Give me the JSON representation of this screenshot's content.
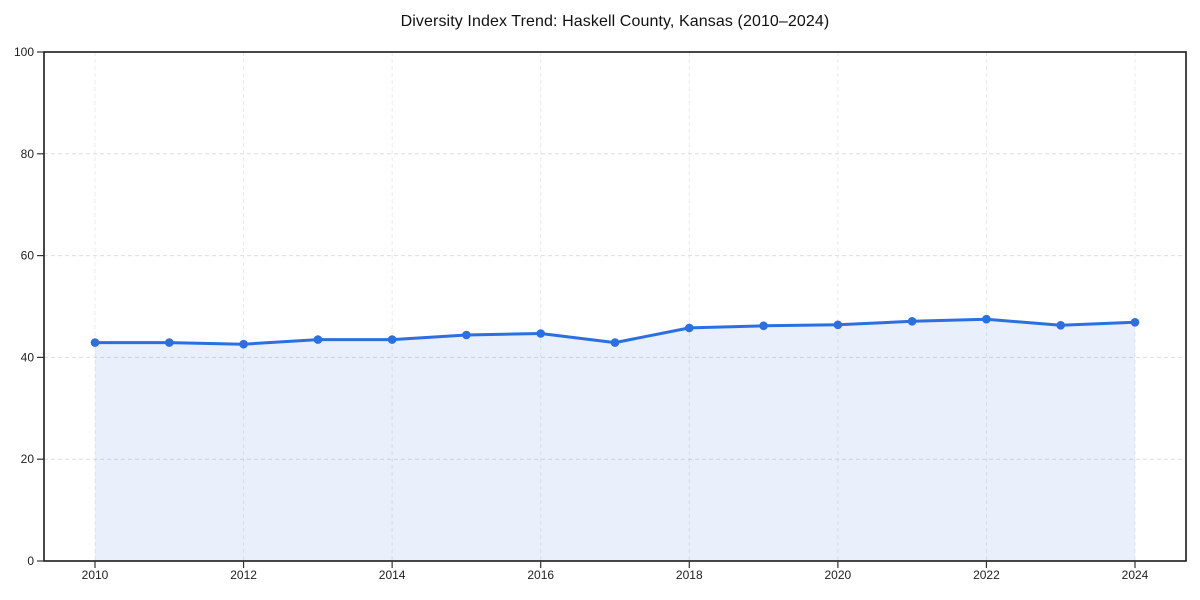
{
  "chart_data": {
    "type": "line",
    "title": "Diversity Index Trend: Haskell County, Kansas (2010–2024)",
    "xlabel": "",
    "ylabel": "",
    "x": [
      2010,
      2011,
      2012,
      2013,
      2014,
      2015,
      2016,
      2017,
      2018,
      2019,
      2020,
      2021,
      2022,
      2023,
      2024
    ],
    "series": [
      {
        "name": "Diversity Index",
        "values": [
          42.9,
          42.9,
          42.6,
          43.5,
          43.5,
          44.4,
          44.7,
          42.9,
          45.8,
          46.2,
          46.4,
          47.1,
          47.5,
          46.3,
          46.9
        ],
        "area_fill": true,
        "markers": true
      }
    ],
    "xticks": [
      2010,
      2012,
      2014,
      2016,
      2018,
      2020,
      2022,
      2024
    ],
    "yticks": [
      0,
      20,
      40,
      60,
      80,
      100
    ],
    "ylim": [
      0,
      100
    ],
    "grid": "dashed",
    "legend": "none",
    "colors": {
      "line": "#2b6fe0",
      "marker": "#2b6fe0",
      "fill": "rgba(43,111,224,0.10)",
      "grid_horizontal": "#dedede",
      "grid_vertical": "#ebebeb",
      "spine": "#1a1a1a",
      "tick": "#333333",
      "tick_label": "#1f1f1f",
      "background": "#ffffff"
    }
  }
}
